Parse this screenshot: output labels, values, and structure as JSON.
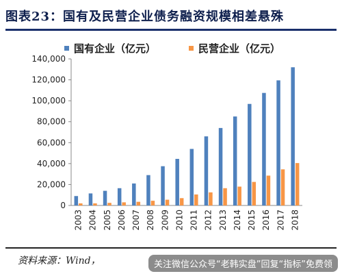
{
  "page": {
    "title": "图表23：国有及民营企业债务融资规模相差悬殊",
    "source": "资料来源：Wind，",
    "watermark": "关注微信公众号“老韩实盘”回复“指标”免费领"
  },
  "chart_data": {
    "type": "bar",
    "categories": [
      "2003",
      "2004",
      "2005",
      "2006",
      "2007",
      "2008",
      "2009",
      "2010",
      "2011",
      "2012",
      "2013",
      "2014",
      "2015",
      "2016",
      "2017",
      "2018"
    ],
    "series": [
      {
        "name": "国有企业（亿元）",
        "color": "#4f81bd",
        "values": [
          9000,
          11500,
          14000,
          16500,
          21000,
          29000,
          37500,
          44500,
          54000,
          66000,
          74000,
          85000,
          97000,
          107500,
          119500,
          132000
        ]
      },
      {
        "name": "民营企业（亿元）",
        "color": "#f79646",
        "values": [
          2000,
          2000,
          2500,
          3000,
          3500,
          4500,
          5500,
          7000,
          10500,
          12500,
          16500,
          18000,
          22500,
          28500,
          34500,
          40500
        ]
      }
    ],
    "yticks": [
      "0",
      "20,000",
      "40,000",
      "60,000",
      "80,000",
      "100,000",
      "120,000",
      "140,000"
    ],
    "ylim": [
      0,
      140000
    ],
    "legend_position": "top",
    "grid": false
  }
}
